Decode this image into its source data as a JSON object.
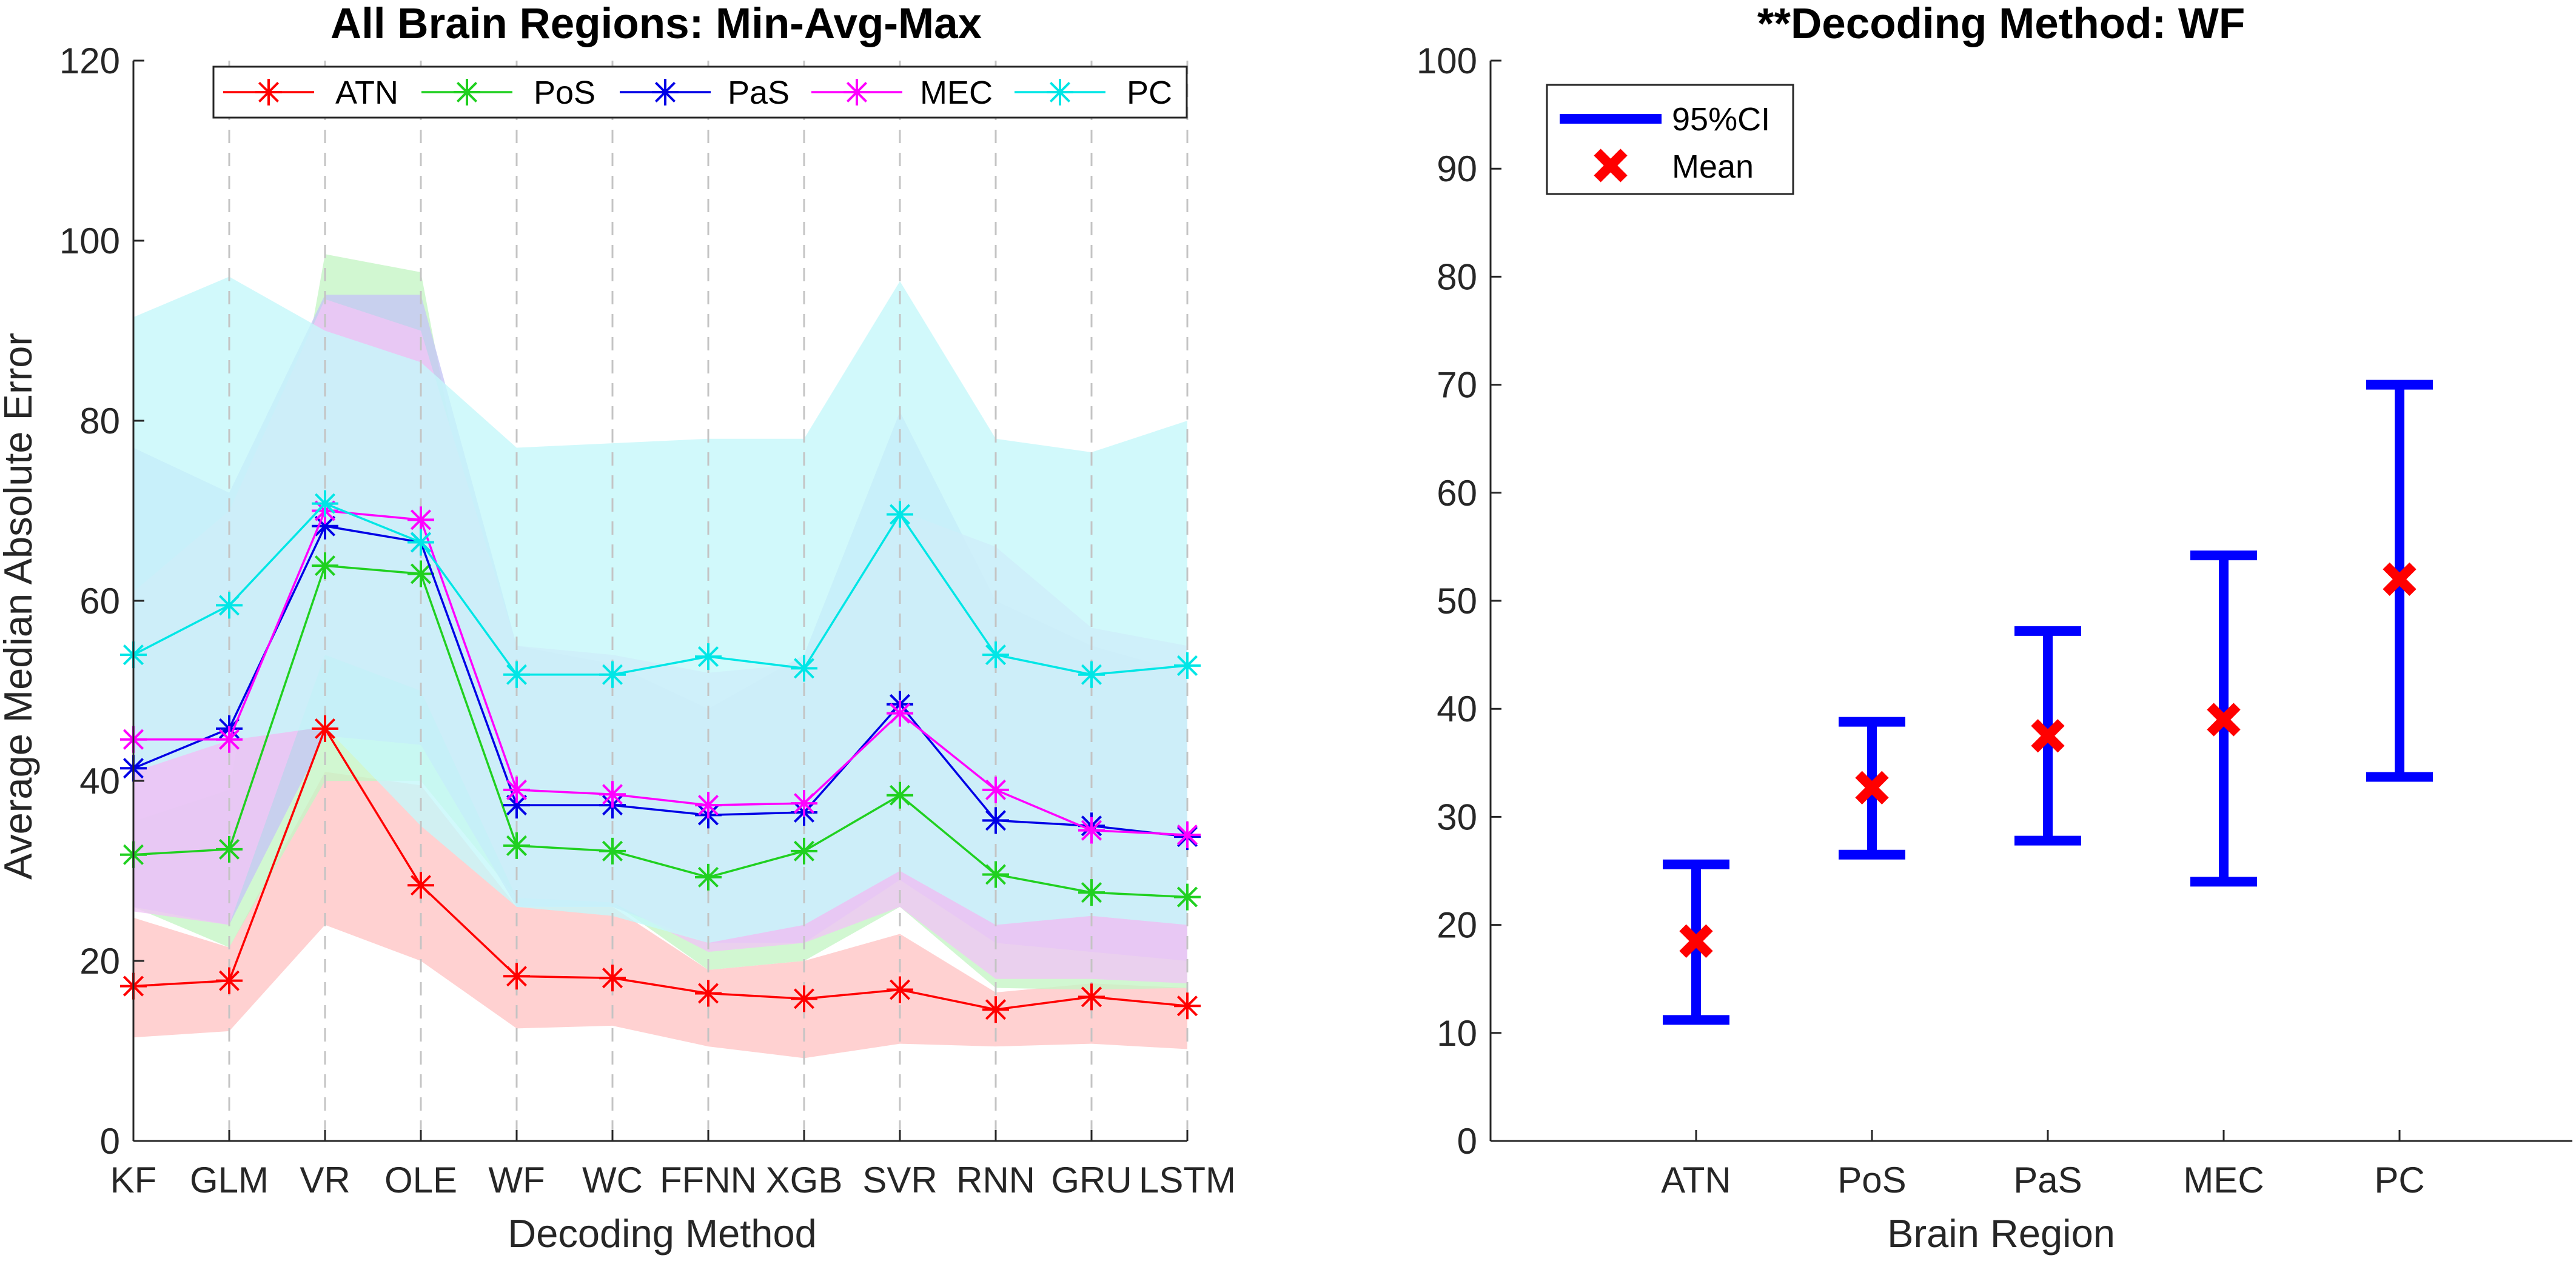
{
  "chart_data": [
    {
      "type": "line",
      "title": "All Brain Regions: Min-Avg-Max",
      "xlabel": "Decoding Method",
      "ylabel": "Average Median Absolute Error",
      "ylim": [
        0,
        120
      ],
      "yticks": [
        0,
        20,
        40,
        60,
        80,
        100,
        120
      ],
      "categories": [
        "KF",
        "GLM",
        "VR",
        "OLE",
        "WF",
        "WC",
        "FFNN",
        "XGB",
        "SVR",
        "RNN",
        "GRU",
        "LSTM"
      ],
      "legend_position": "top",
      "grid": "vertical dashed",
      "series": [
        {
          "name": "ATN",
          "color": "#ff0000",
          "band_color": "#ffc6c6",
          "values": [
            17.2,
            17.8,
            45.8,
            28.4,
            18.3,
            18.1,
            16.4,
            15.8,
            16.8,
            14.6,
            16.0,
            15.0
          ],
          "min": [
            11.5,
            12.2,
            24.0,
            20.0,
            12.5,
            12.8,
            10.5,
            9.2,
            10.8,
            10.5,
            10.8,
            10.2
          ],
          "max": [
            24.8,
            21.5,
            41.0,
            39.5,
            26.0,
            26.0,
            19.0,
            20.0,
            23.0,
            16.5,
            17.5,
            17.0
          ]
        },
        {
          "name": "PoS",
          "color": "#20d020",
          "band_color": "#c6f5c6",
          "values": [
            31.8,
            32.4,
            63.9,
            63.0,
            32.8,
            32.2,
            29.3,
            32.2,
            38.4,
            29.6,
            27.6,
            27.1
          ],
          "min": [
            26.0,
            21.5,
            40.0,
            40.0,
            27.0,
            26.5,
            19.0,
            20.0,
            26.0,
            17.0,
            16.8,
            17.0
          ],
          "max": [
            35.5,
            39.0,
            98.5,
            96.5,
            40.5,
            38.0,
            36.0,
            37.0,
            43.0,
            33.0,
            32.5,
            32.0
          ]
        },
        {
          "name": "PaS",
          "color": "#0000e6",
          "band_color": "#c6c6f5",
          "values": [
            41.4,
            45.8,
            68.3,
            66.5,
            37.3,
            37.3,
            36.2,
            36.5,
            48.5,
            35.6,
            35.0,
            33.8
          ],
          "min": [
            26.0,
            24.0,
            45.0,
            44.0,
            26.0,
            26.0,
            22.0,
            22.0,
            29.0,
            22.0,
            21.0,
            20.0
          ],
          "max": [
            77.0,
            72.0,
            94.0,
            94.0,
            55.0,
            53.0,
            48.0,
            54.0,
            81.0,
            60.0,
            55.0,
            52.0
          ]
        },
        {
          "name": "MEC",
          "color": "#ff00ff",
          "band_color": "#f0c6f5",
          "values": [
            44.6,
            44.6,
            70.0,
            69.0,
            39.0,
            38.5,
            37.3,
            37.5,
            47.5,
            39.0,
            34.5,
            34.0
          ],
          "min": [
            25.5,
            24.0,
            54.0,
            50.0,
            27.0,
            26.5,
            21.0,
            22.0,
            26.0,
            18.0,
            18.0,
            17.5
          ],
          "max": [
            61.0,
            70.0,
            93.5,
            90.0,
            55.0,
            54.0,
            52.0,
            53.0,
            70.0,
            66.0,
            57.0,
            55.0
          ]
        },
        {
          "name": "PC",
          "color": "#00e6e6",
          "band_color": "#c6f8fa",
          "values": [
            54.0,
            59.5,
            70.8,
            66.5,
            51.8,
            51.8,
            53.8,
            52.5,
            69.6,
            54.0,
            51.8,
            52.8
          ],
          "min": [
            41.0,
            44.5,
            46.0,
            35.0,
            26.0,
            25.0,
            22.0,
            24.0,
            30.0,
            24.0,
            25.0,
            24.0
          ],
          "max": [
            91.5,
            96.0,
            90.0,
            86.5,
            77.0,
            77.5,
            78.0,
            78.0,
            95.5,
            78.0,
            76.5,
            80.0
          ]
        }
      ]
    },
    {
      "type": "errorbar",
      "title": "**Decoding Method: WF",
      "xlabel": "Brain Region",
      "ylabel": "",
      "ylim": [
        0,
        100
      ],
      "yticks": [
        0,
        10,
        20,
        30,
        40,
        50,
        60,
        70,
        80,
        90,
        100
      ],
      "categories": [
        "ATN",
        "PoS",
        "PaS",
        "MEC",
        "PC"
      ],
      "legend_position": "top-left",
      "legend": [
        "95%CI",
        "Mean"
      ],
      "ci_color": "#0000ff",
      "mean_color": "#ff0000",
      "mean": [
        18.5,
        32.7,
        37.5,
        39.0,
        52.0
      ],
      "ci_low": [
        11.2,
        26.5,
        27.8,
        24.0,
        33.7
      ],
      "ci_high": [
        25.6,
        38.8,
        47.2,
        54.2,
        70.0
      ]
    }
  ]
}
